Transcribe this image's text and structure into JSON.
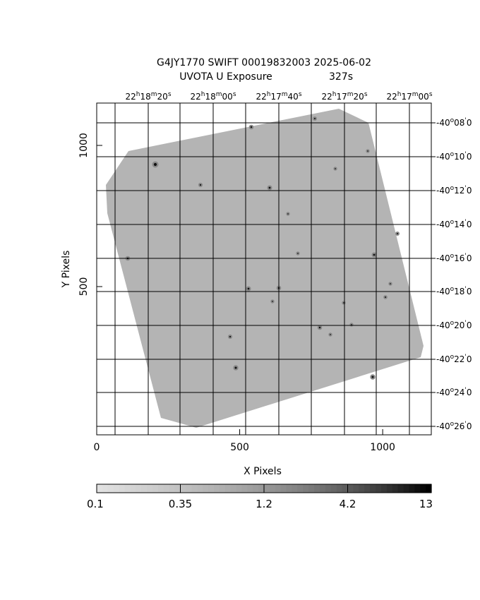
{
  "header": {
    "title_line1": "G4JY1770 SWIFT 00019832003 2025-06-02",
    "title_instrument": "UVOTA U Exposure",
    "title_exposure": "327s"
  },
  "axes": {
    "xlabel": "X Pixels",
    "ylabel": "Y Pixels",
    "x_ticks": [
      "0",
      "500",
      "1000"
    ],
    "x_tick_values": [
      0,
      500,
      1000
    ],
    "y_ticks": [
      "500",
      "1000"
    ],
    "y_tick_values": [
      500,
      1000
    ],
    "x_range": [
      0,
      1170
    ],
    "y_range": [
      -25,
      1150
    ]
  },
  "ra_labels": [
    {
      "h": "22",
      "m": "18",
      "s": "20"
    },
    {
      "h": "22",
      "m": "18",
      "s": "00"
    },
    {
      "h": "22",
      "m": "17",
      "s": "40"
    },
    {
      "h": "22",
      "m": "17",
      "s": "20"
    },
    {
      "h": "22",
      "m": "17",
      "s": "00"
    }
  ],
  "dec_labels": [
    {
      "deg": "-40",
      "min": "08"
    },
    {
      "deg": "-40",
      "min": "10"
    },
    {
      "deg": "-40",
      "min": "12"
    },
    {
      "deg": "-40",
      "min": "14"
    },
    {
      "deg": "-40",
      "min": "16"
    },
    {
      "deg": "-40",
      "min": "18"
    },
    {
      "deg": "-40",
      "min": "20"
    },
    {
      "deg": "-40",
      "min": "22"
    },
    {
      "deg": "-40",
      "min": "24"
    },
    {
      "deg": "-40",
      "min": "26"
    }
  ],
  "colorbar": {
    "labels": [
      "0.1",
      "0.35",
      "1.2",
      "4.2",
      "13"
    ],
    "scale": "log"
  },
  "colors": {
    "background": "#ffffff",
    "image_gray": "#b4b4b4",
    "grid": "#000000"
  }
}
